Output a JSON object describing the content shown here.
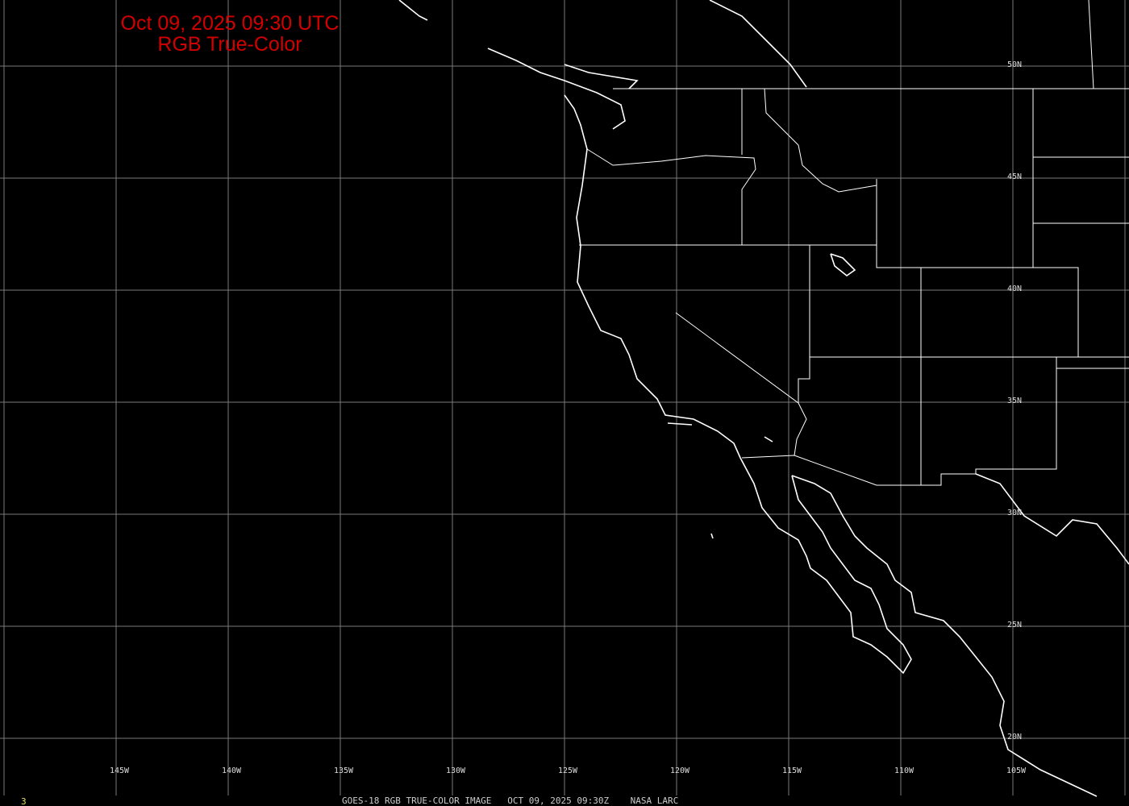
{
  "title": {
    "line1": "Oct 09, 2025 09:30 UTC",
    "line2": "RGB True-Color"
  },
  "latitude_labels": [
    "50N",
    "45N",
    "40N",
    "35N",
    "30N",
    "25N",
    "20N"
  ],
  "longitude_labels": [
    "145W",
    "140W",
    "135W",
    "130W",
    "125W",
    "120W",
    "115W",
    "110W",
    "105W"
  ],
  "footer": "GOES-18 RGB TRUE-COLOR IMAGE   OCT 09, 2025 09:30Z    NASA LARC",
  "frame_number": "3",
  "colors": {
    "background": "#000000",
    "title": "#d40000",
    "grid": "#808080",
    "coast": "#ffffff",
    "frame_number": "#e0e060"
  }
}
